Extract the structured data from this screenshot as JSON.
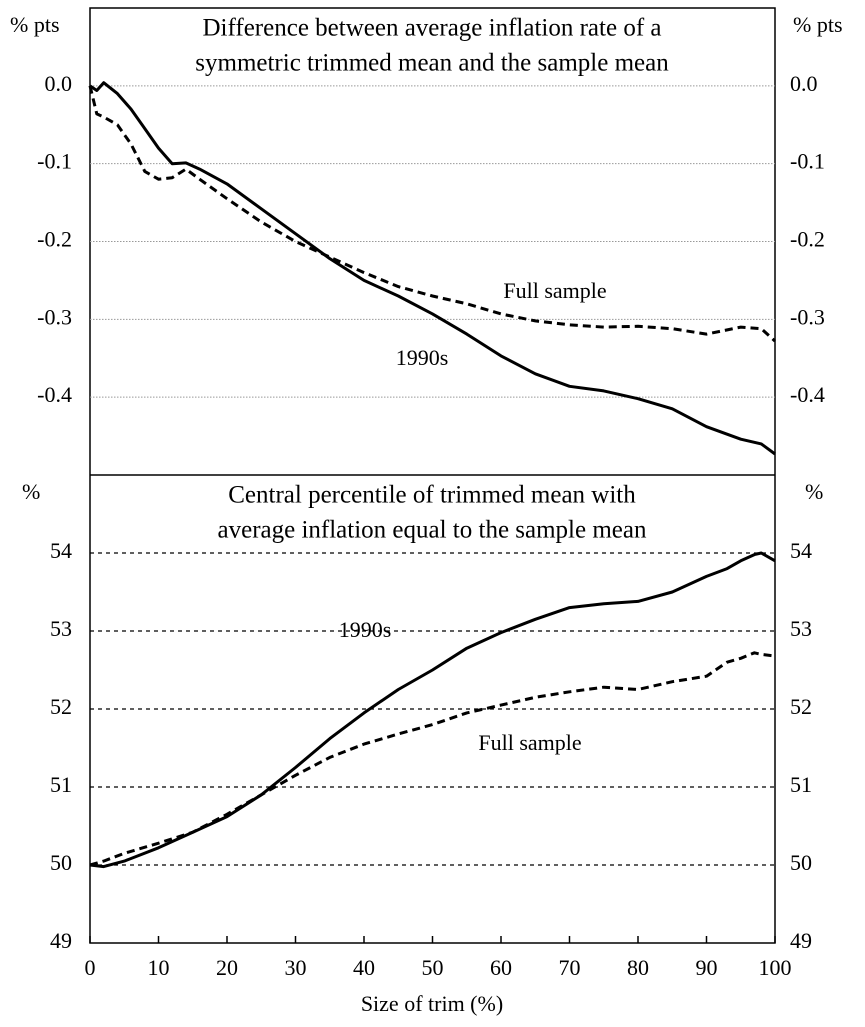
{
  "chart_data": [
    {
      "type": "line",
      "title": [
        "Difference between average inflation rate of a",
        "symmetric trimmed mean and the sample mean"
      ],
      "ylabel": "% pts",
      "x": [
        0,
        1,
        2,
        4,
        6,
        8,
        10,
        12,
        14,
        16,
        20,
        25,
        30,
        35,
        40,
        45,
        50,
        55,
        60,
        65,
        70,
        75,
        80,
        85,
        90,
        95,
        98,
        100
      ],
      "series": [
        {
          "name": "1990s",
          "color": "#000000",
          "line_style": "solid",
          "values": [
            0,
            -0.006,
            0.004,
            -0.01,
            -0.03,
            -0.055,
            -0.08,
            -0.1,
            -0.099,
            -0.107,
            -0.126,
            -0.158,
            -0.19,
            -0.222,
            -0.25,
            -0.27,
            -0.293,
            -0.319,
            -0.347,
            -0.37,
            -0.386,
            -0.392,
            -0.402,
            -0.415,
            -0.438,
            -0.454,
            -0.46,
            -0.473
          ]
        },
        {
          "name": "Full sample",
          "color": "#000000",
          "line_style": "dashed",
          "values": [
            0,
            -0.036,
            -0.04,
            -0.05,
            -0.075,
            -0.11,
            -0.12,
            -0.118,
            -0.107,
            -0.12,
            -0.145,
            -0.175,
            -0.2,
            -0.22,
            -0.24,
            -0.258,
            -0.27,
            -0.28,
            -0.293,
            -0.302,
            -0.307,
            -0.31,
            -0.309,
            -0.312,
            -0.319,
            -0.31,
            -0.312,
            -0.328
          ]
        }
      ],
      "xlim": [
        0,
        100
      ],
      "ylim": [
        -0.5,
        0.1
      ],
      "yticks": [
        {
          "value": 0,
          "label": "0.0"
        },
        -0.1,
        -0.2,
        -0.3,
        -0.4
      ],
      "grid": true,
      "grid_style": "dotted"
    },
    {
      "type": "line",
      "title": [
        "Central percentile of trimmed mean with",
        "average inflation equal to the sample mean"
      ],
      "ylabel": "%",
      "xlabel": "Size of trim (%)",
      "x": [
        0,
        2,
        5,
        10,
        15,
        20,
        25,
        30,
        35,
        40,
        45,
        50,
        55,
        60,
        65,
        70,
        75,
        80,
        85,
        90,
        93,
        95,
        97,
        98,
        100
      ],
      "series": [
        {
          "name": "1990s",
          "color": "#000000",
          "line_style": "solid",
          "values": [
            50,
            49.98,
            50.05,
            50.22,
            50.42,
            50.62,
            50.9,
            51.25,
            51.62,
            51.95,
            52.25,
            52.5,
            52.78,
            52.98,
            53.15,
            53.3,
            53.35,
            53.38,
            53.5,
            53.7,
            53.8,
            53.9,
            53.98,
            54.0,
            53.9
          ]
        },
        {
          "name": "Full sample",
          "color": "#000000",
          "line_style": "dashed",
          "values": [
            50,
            50.05,
            50.15,
            50.28,
            50.42,
            50.65,
            50.9,
            51.15,
            51.38,
            51.55,
            51.68,
            51.8,
            51.95,
            52.05,
            52.15,
            52.22,
            52.28,
            52.25,
            52.35,
            52.42,
            52.6,
            52.65,
            52.72,
            52.7,
            52.68
          ]
        }
      ],
      "xlim": [
        0,
        100
      ],
      "xticks": [
        0,
        10,
        20,
        30,
        40,
        50,
        60,
        70,
        80,
        90,
        100
      ],
      "ylim": [
        49,
        55
      ],
      "yticks": [
        49,
        50,
        51,
        52,
        53,
        54
      ],
      "grid": true,
      "grid_style": "dashed"
    }
  ]
}
